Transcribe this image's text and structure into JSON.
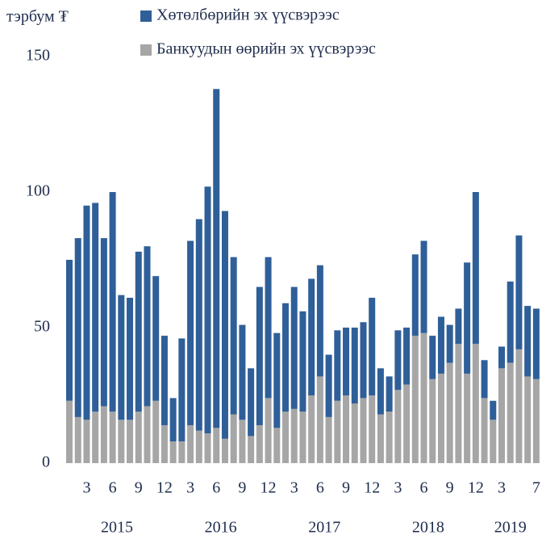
{
  "chart_data": {
    "type": "stacked_bar",
    "unit_label": "тэрбум ₮",
    "categories": [
      null,
      null,
      "3",
      null,
      null,
      "6",
      null,
      null,
      "9",
      null,
      null,
      "12",
      null,
      null,
      "3",
      null,
      null,
      "6",
      null,
      null,
      "9",
      null,
      null,
      "12",
      null,
      null,
      "3",
      null,
      null,
      "6",
      null,
      null,
      "9",
      null,
      null,
      "12",
      null,
      null,
      "3",
      null,
      null,
      "6",
      null,
      null,
      "9",
      null,
      null,
      "12",
      null,
      null,
      "3",
      null,
      null,
      null,
      "7"
    ],
    "years": [
      "2015",
      "2016",
      "2017",
      "2018",
      "2019"
    ],
    "series": [
      {
        "name": "Банкуудын өөрийн эх үүсвэрээс",
        "color": "#a6a6a6",
        "values": [
          23,
          17,
          16,
          19,
          21,
          19,
          16,
          16,
          19,
          21,
          23,
          14,
          8,
          8,
          14,
          12,
          11,
          13,
          9,
          18,
          16,
          10,
          14,
          24,
          13,
          19,
          20,
          19,
          25,
          32,
          17,
          23,
          25,
          22,
          24,
          25,
          18,
          19,
          27,
          29,
          47,
          48,
          31,
          33,
          37,
          44,
          33,
          44,
          24,
          16,
          35,
          37,
          42,
          32,
          31
        ]
      },
      {
        "name": "Хөтөлбөрийн эх үүсвэрээс",
        "color": "#2f5f98",
        "values": [
          52,
          66,
          79,
          77,
          62,
          81,
          46,
          45,
          59,
          59,
          46,
          33,
          16,
          38,
          68,
          78,
          91,
          125,
          84,
          58,
          35,
          25,
          51,
          52,
          35,
          40,
          45,
          37,
          43,
          41,
          23,
          26,
          25,
          28,
          28,
          36,
          17,
          13,
          22,
          21,
          30,
          34,
          16,
          21,
          14,
          13,
          41,
          56,
          14,
          7,
          8,
          30,
          42,
          26,
          26
        ]
      }
    ],
    "ylim": [
      0,
      150
    ],
    "yticks": [
      0,
      50,
      100,
      150
    ],
    "grid": false
  }
}
